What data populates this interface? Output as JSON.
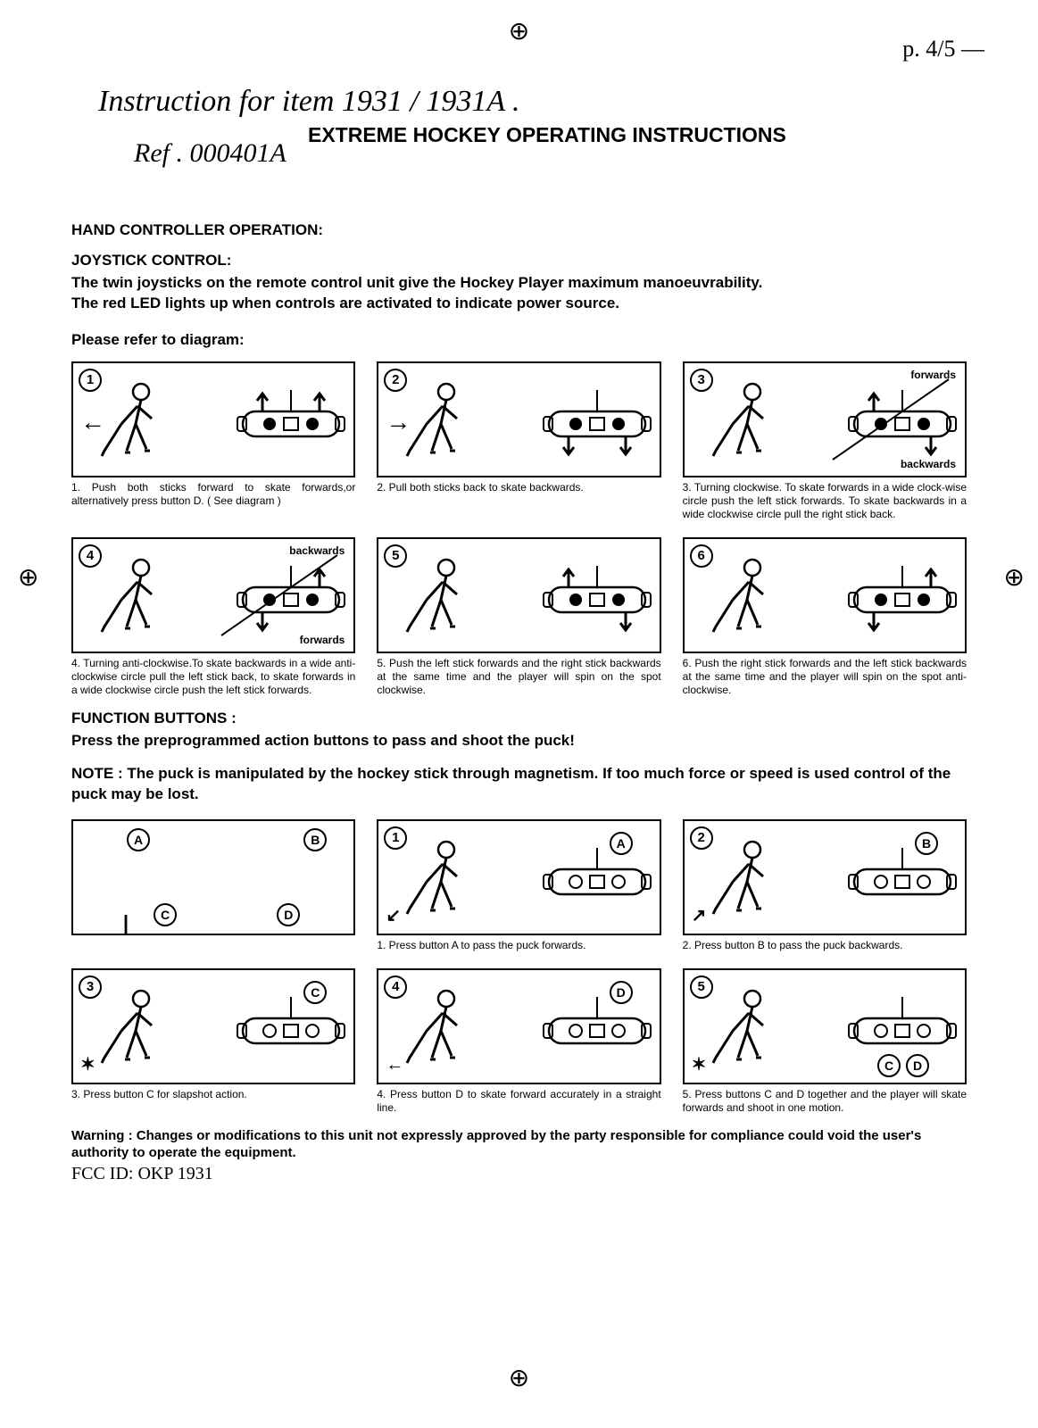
{
  "regmark_glyph": "⊕",
  "corner_note": "p. 4/5 —",
  "handwritten_line1": "Instruction for item 1931 / 1931A .",
  "handwritten_line2": "Ref . 000401A",
  "title": "EXTREME HOCKEY OPERATING INSTRUCTIONS",
  "section1_heading": "HAND CONTROLLER OPERATION:",
  "joystick_heading": "JOYSTICK CONTROL:",
  "joystick_body_l1": "The twin joysticks on the remote control unit give the Hockey Player maximum manoeuvrability.",
  "joystick_body_l2": "The red LED lights up when controls are activated to indicate power source.",
  "refer_line": "Please refer to diagram:",
  "joystick_panels": [
    {
      "n": "1",
      "caption": "1. Push both sticks forward to skate forwards,or alternatively press button D. ( See diagram )",
      "label_a": "",
      "label_b": ""
    },
    {
      "n": "2",
      "caption": "2. Pull both sticks back to skate backwards.",
      "label_a": "",
      "label_b": ""
    },
    {
      "n": "3",
      "caption": "3. Turning clockwise. To skate forwards in a wide clock-wise circle push the left stick forwards. To skate backwards in a wide clockwise circle pull the right stick back.",
      "label_a": "forwards",
      "label_b": "backwards"
    },
    {
      "n": "4",
      "caption": "4. Turning anti-clockwise.To skate backwards in a wide anti-clockwise circle pull the left stick back, to skate forwards in a wide clockwise circle push the left stick forwards.",
      "label_a": "backwards",
      "label_b": "forwards"
    },
    {
      "n": "5",
      "caption": "5. Push the left stick forwards and the right stick backwards at the same time and the player will spin on the spot clockwise.",
      "label_a": "",
      "label_b": ""
    },
    {
      "n": "6",
      "caption": "6. Push the right stick forwards and the left stick backwards at the same time and the player will spin on the spot anti-clockwise.",
      "label_a": "",
      "label_b": ""
    }
  ],
  "function_heading": "FUNCTION BUTTONS :",
  "function_body": "Press the preprogrammed action buttons to pass and shoot the puck!",
  "note_line": "NOTE : The puck is manipulated by the hockey stick through magnetism. If too much force or speed is used control of the puck may be lost.",
  "function_panels_row1": [
    {
      "n": "",
      "letters": [
        "A",
        "B",
        "C",
        "D"
      ],
      "caption": ""
    },
    {
      "n": "1",
      "letters": [
        "A"
      ],
      "caption": "1. Press button A to pass the puck forwards."
    },
    {
      "n": "2",
      "letters": [
        "B"
      ],
      "caption": "2. Press button B to pass the puck backwards."
    }
  ],
  "function_panels_row2": [
    {
      "n": "3",
      "letters": [
        "C"
      ],
      "caption": "3. Press button C for slapshot action."
    },
    {
      "n": "4",
      "letters": [
        "D"
      ],
      "caption": "4. Press button D to skate forward accurately in a straight line."
    },
    {
      "n": "5",
      "letters": [
        "C",
        "D"
      ],
      "caption": "5. Press buttons C and D together and the player will skate forwards and shoot in one motion."
    }
  ],
  "warning_text": "Warning : Changes or modifications to this unit not expressly approved by the party responsible for compliance could void the user's authority to operate the equipment.",
  "fcc_id": "FCC ID: OKP 1931",
  "colors": {
    "paper": "#ffffff",
    "ink": "#000000",
    "border": "#000000"
  }
}
